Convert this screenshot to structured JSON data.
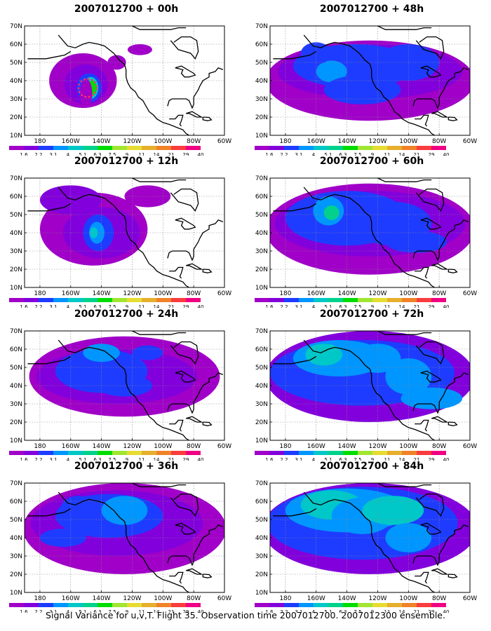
{
  "panels": [
    {
      "title": "2007012700 + 00h"
    },
    {
      "title": "2007012700 + 48h"
    },
    {
      "title": "2007012700 + 12h"
    },
    {
      "title": "2007012700 + 60h"
    },
    {
      "title": "2007012700 + 24h"
    },
    {
      "title": "2007012700 + 72h"
    },
    {
      "title": "2007012700 + 36h"
    },
    {
      "title": "2007012700 + 84h"
    }
  ],
  "axes": {
    "y_ticks": [
      "70N",
      "60N",
      "50N",
      "40N",
      "30N",
      "20N",
      "10N"
    ],
    "x_ticks": [
      "180",
      "160W",
      "140W",
      "120W",
      "100W",
      "80W",
      "60W"
    ]
  },
  "colorbar": {
    "labels": [
      "1.6",
      "2.2",
      "3.1",
      "4",
      "5.1",
      "6.3",
      "7.5",
      "9",
      "11",
      "14",
      "21",
      "29",
      "40"
    ],
    "colors": [
      "#a000c8",
      "#8200dc",
      "#1e3cff",
      "#0096ff",
      "#00c8c8",
      "#00d28c",
      "#00dc00",
      "#a0e632",
      "#e6dc32",
      "#e6af2d",
      "#f08228",
      "#fa3c3c",
      "#f00082"
    ]
  },
  "footer": {
    "caption": "Signal Variance for u,v,T. Flight 35. Observation time 2007012700. 2007012300 ensemble."
  },
  "observation_marker": {
    "color": "#ff3366",
    "style": "dashed circle"
  }
}
